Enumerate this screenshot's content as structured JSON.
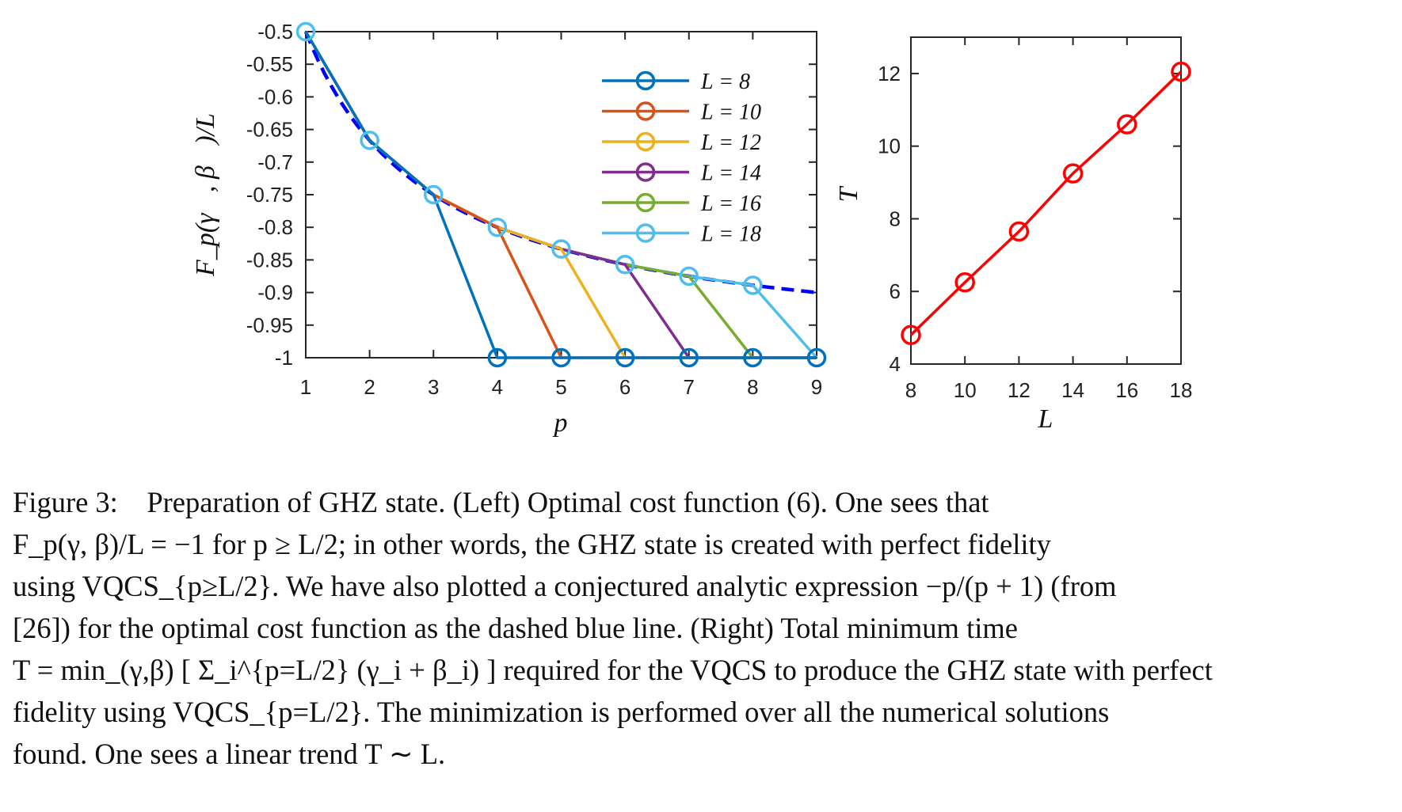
{
  "chart_data": [
    {
      "type": "line",
      "xlabel": "p",
      "ylabel": "F_p(γ⃗, β⃗)/L",
      "xlim": [
        1,
        9
      ],
      "ylim": [
        -1,
        -0.5
      ],
      "xticks": [
        "1",
        "2",
        "3",
        "4",
        "5",
        "6",
        "7",
        "8",
        "9"
      ],
      "yticks": [
        "-0.5",
        "-0.55",
        "-0.6",
        "-0.65",
        "-0.7",
        "-0.75",
        "-0.8",
        "-0.85",
        "-0.9",
        "-0.95",
        "-1"
      ],
      "legend_position": "top-right",
      "series": [
        {
          "name": "L = 8",
          "color": "#0072BD",
          "x": [
            1,
            2,
            3,
            4,
            5,
            6,
            7,
            8,
            9
          ],
          "y": [
            -0.5,
            -0.6667,
            -0.75,
            -1,
            -1,
            -1,
            -1,
            -1,
            -1
          ]
        },
        {
          "name": "L = 10",
          "color": "#D95319",
          "x": [
            1,
            2,
            3,
            4,
            5,
            6,
            7,
            8,
            9
          ],
          "y": [
            -0.5,
            -0.6667,
            -0.75,
            -0.8,
            -1,
            -1,
            -1,
            -1,
            -1
          ]
        },
        {
          "name": "L = 12",
          "color": "#EDB120",
          "x": [
            1,
            2,
            3,
            4,
            5,
            6,
            7,
            8,
            9
          ],
          "y": [
            -0.5,
            -0.6667,
            -0.75,
            -0.8,
            -0.8333,
            -1,
            -1,
            -1,
            -1
          ]
        },
        {
          "name": "L = 14",
          "color": "#7E2F8E",
          "x": [
            1,
            2,
            3,
            4,
            5,
            6,
            7,
            8,
            9
          ],
          "y": [
            -0.5,
            -0.6667,
            -0.75,
            -0.8,
            -0.8333,
            -0.8571,
            -1,
            -1,
            -1
          ]
        },
        {
          "name": "L = 16",
          "color": "#77AC30",
          "x": [
            1,
            2,
            3,
            4,
            5,
            6,
            7,
            8,
            9
          ],
          "y": [
            -0.5,
            -0.6667,
            -0.75,
            -0.8,
            -0.8333,
            -0.8571,
            -0.875,
            -1,
            -1
          ]
        },
        {
          "name": "L = 18",
          "color": "#4DBEEE",
          "x": [
            1,
            2,
            3,
            4,
            5,
            6,
            7,
            8,
            9
          ],
          "y": [
            -0.5,
            -0.6667,
            -0.75,
            -0.8,
            -0.8333,
            -0.8571,
            -0.875,
            -0.8889,
            -1
          ]
        }
      ],
      "analytic_curve": {
        "expression": "-p/(p+1)",
        "style": "dashed",
        "color": "#0000FF",
        "x_range": [
          1,
          9
        ]
      }
    },
    {
      "type": "line",
      "xlabel": "L",
      "ylabel": "T",
      "xlim": [
        8,
        18
      ],
      "ylim": [
        4,
        13
      ],
      "xticks": [
        "8",
        "10",
        "12",
        "14",
        "16",
        "18"
      ],
      "yticks": [
        "4",
        "6",
        "8",
        "10",
        "12"
      ],
      "series": [
        {
          "color": "#FF0000",
          "x": [
            8,
            10,
            12,
            14,
            16,
            18
          ],
          "y": [
            4.8,
            6.25,
            7.65,
            9.25,
            10.6,
            12.05
          ]
        }
      ]
    }
  ],
  "caption": {
    "figure_label": "Figure 3:",
    "line1": "Preparation of GHZ state. (Left) Optimal cost function (6). One sees that",
    "line2": "F_p(γ, β)/L = −1 for p ≥ L/2; in other words, the GHZ state is created with perfect fidelity",
    "line3": "using VQCS_{p≥L/2}. We have also plotted a conjectured analytic expression −p/(p + 1) (from",
    "line4": "[26]) for the optimal cost function as the dashed blue line. (Right) Total minimum time",
    "line5": "T = min_(γ,β) [ Σ_i^{p=L/2} (γ_i + β_i) ] required for the VQCS to produce the GHZ state with perfect",
    "line6": "fidelity using VQCS_{p=L/2}. The minimization is performed over all the numerical solutions",
    "line7": "found. One sees a linear trend T ∼ L."
  }
}
